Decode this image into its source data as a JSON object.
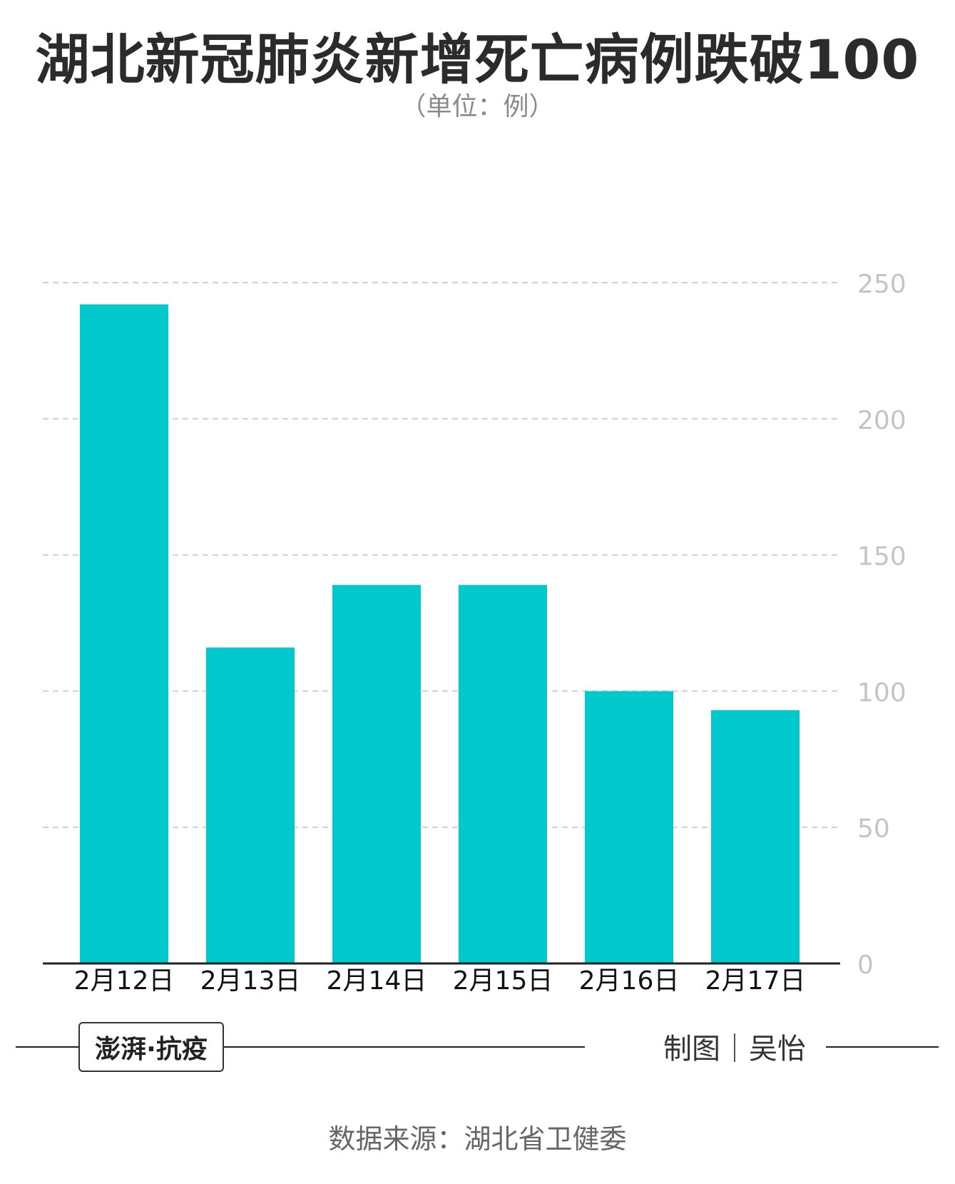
{
  "header": {
    "title": "湖北新冠肺炎新增死亡病例跌破100",
    "subtitle": "（单位：例）"
  },
  "chart_data": {
    "type": "bar",
    "categories": [
      "2月12日",
      "2月13日",
      "2月14日",
      "2月15日",
      "2月16日",
      "2月17日"
    ],
    "values": [
      242,
      116,
      139,
      139,
      100,
      93
    ],
    "ylim": [
      0,
      250
    ],
    "yticks": [
      0,
      50,
      100,
      150,
      200,
      250
    ],
    "grid": true,
    "y_axis_position": "right",
    "bar_color": "#00c8cc"
  },
  "footer": {
    "logo_text": "澎湃·抗疫",
    "credit": "制图｜吴怡",
    "source": "数据来源：湖北省卫健委"
  }
}
